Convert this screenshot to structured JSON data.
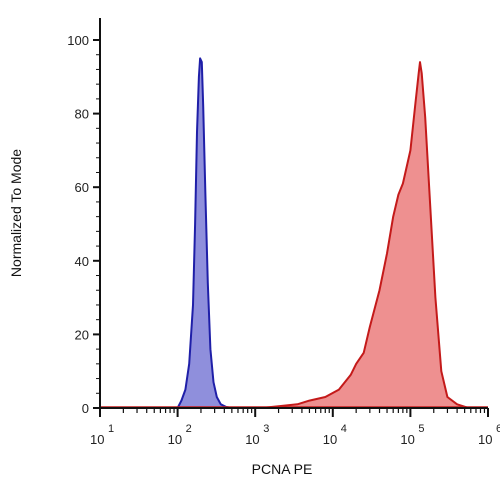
{
  "chart_data": {
    "type": "area",
    "xlabel": "PCNA PE",
    "ylabel": "Normalized To Mode",
    "x_scale": "log",
    "xlim": [
      10,
      1000000
    ],
    "ylim": [
      0,
      100
    ],
    "y_ticks": [
      0,
      20,
      40,
      60,
      80,
      100
    ],
    "x_tick_labels": [
      {
        "base": "10",
        "exp": "1"
      },
      {
        "base": "10",
        "exp": "2"
      },
      {
        "base": "10",
        "exp": "3"
      },
      {
        "base": "10",
        "exp": "4"
      },
      {
        "base": "10",
        "exp": "5"
      },
      {
        "base": "10",
        "exp": "6"
      }
    ],
    "grid": false,
    "legend": "none",
    "series": [
      {
        "color": "#1f1fa8",
        "fill": "#8f8fdc",
        "points": [
          [
            100,
            0
          ],
          [
            112,
            2
          ],
          [
            126,
            5
          ],
          [
            141,
            12
          ],
          [
            158,
            28
          ],
          [
            168,
            50
          ],
          [
            178,
            75
          ],
          [
            188,
            90
          ],
          [
            195,
            95
          ],
          [
            205,
            94
          ],
          [
            214,
            82
          ],
          [
            228,
            58
          ],
          [
            245,
            34
          ],
          [
            265,
            16
          ],
          [
            290,
            7
          ],
          [
            320,
            3
          ],
          [
            360,
            1
          ],
          [
            420,
            0.3
          ],
          [
            500,
            0
          ]
        ]
      },
      {
        "color": "#c41a1a",
        "fill": "#ee9090",
        "points": [
          [
            1200,
            0
          ],
          [
            2000,
            0.5
          ],
          [
            3500,
            1
          ],
          [
            5000,
            2
          ],
          [
            8000,
            3
          ],
          [
            12000,
            5
          ],
          [
            17000,
            9
          ],
          [
            20000,
            12
          ],
          [
            25000,
            15
          ],
          [
            30000,
            22
          ],
          [
            40000,
            32
          ],
          [
            50000,
            42
          ],
          [
            60000,
            52
          ],
          [
            70000,
            58
          ],
          [
            80000,
            61
          ],
          [
            100000,
            70
          ],
          [
            115000,
            82
          ],
          [
            128000,
            91
          ],
          [
            133000,
            94
          ],
          [
            140000,
            91
          ],
          [
            155000,
            79
          ],
          [
            180000,
            55
          ],
          [
            210000,
            30
          ],
          [
            250000,
            10
          ],
          [
            300000,
            3
          ],
          [
            400000,
            1
          ],
          [
            560000,
            0
          ]
        ]
      }
    ]
  }
}
